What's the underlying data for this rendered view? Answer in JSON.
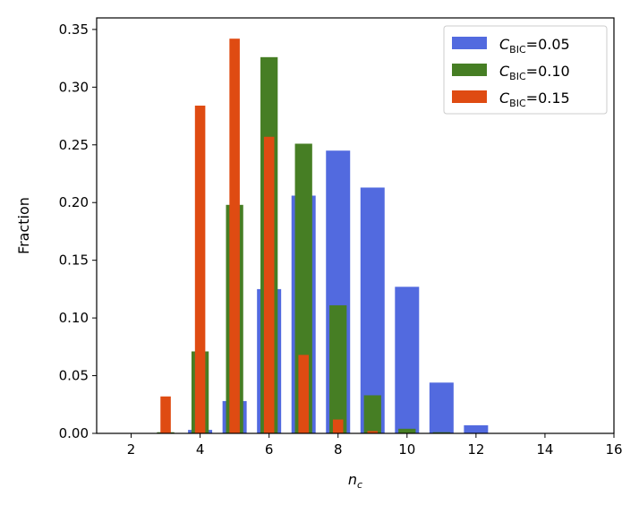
{
  "chart_data": {
    "type": "bar",
    "title": "",
    "xlabel": {
      "main": "n",
      "sub": "c"
    },
    "ylabel": "Fraction",
    "xlim": [
      1,
      16
    ],
    "ylim": [
      0,
      0.36
    ],
    "xticks": [
      2,
      4,
      6,
      8,
      10,
      12,
      14,
      16
    ],
    "yticks": [
      0.0,
      0.05,
      0.1,
      0.15,
      0.2,
      0.25,
      0.3,
      0.35
    ],
    "xtick_labels": [
      "2",
      "4",
      "6",
      "8",
      "10",
      "12",
      "14",
      "16"
    ],
    "ytick_labels": [
      "0.00",
      "0.05",
      "0.10",
      "0.15",
      "0.20",
      "0.25",
      "0.30",
      "0.35"
    ],
    "legend_position": "top-right",
    "series": [
      {
        "name": "C_BIC=0.05",
        "legend_symbol": "C",
        "legend_sub": "BIC",
        "legend_value": "=0.05",
        "color": "#526ADF",
        "bar_width": 0.7,
        "x": [
          4,
          5,
          6,
          7,
          8,
          9,
          10,
          11,
          12
        ],
        "values": [
          0.003,
          0.028,
          0.125,
          0.206,
          0.245,
          0.213,
          0.127,
          0.044,
          0.007
        ]
      },
      {
        "name": "C_BIC=0.10",
        "legend_symbol": "C",
        "legend_sub": "BIC",
        "legend_value": "=0.10",
        "color": "#467E24",
        "bar_width": 0.5,
        "x": [
          3,
          4,
          5,
          6,
          7,
          8,
          9,
          10,
          11
        ],
        "values": [
          0.001,
          0.071,
          0.198,
          0.326,
          0.251,
          0.111,
          0.033,
          0.004,
          0.001
        ]
      },
      {
        "name": "C_BIC=0.15",
        "legend_symbol": "C",
        "legend_sub": "BIC",
        "legend_value": "=0.15",
        "color": "#DF4B12",
        "bar_width": 0.3,
        "x": [
          3,
          4,
          5,
          6,
          7,
          8,
          9
        ],
        "values": [
          0.032,
          0.284,
          0.342,
          0.257,
          0.068,
          0.012,
          0.002
        ]
      }
    ]
  }
}
